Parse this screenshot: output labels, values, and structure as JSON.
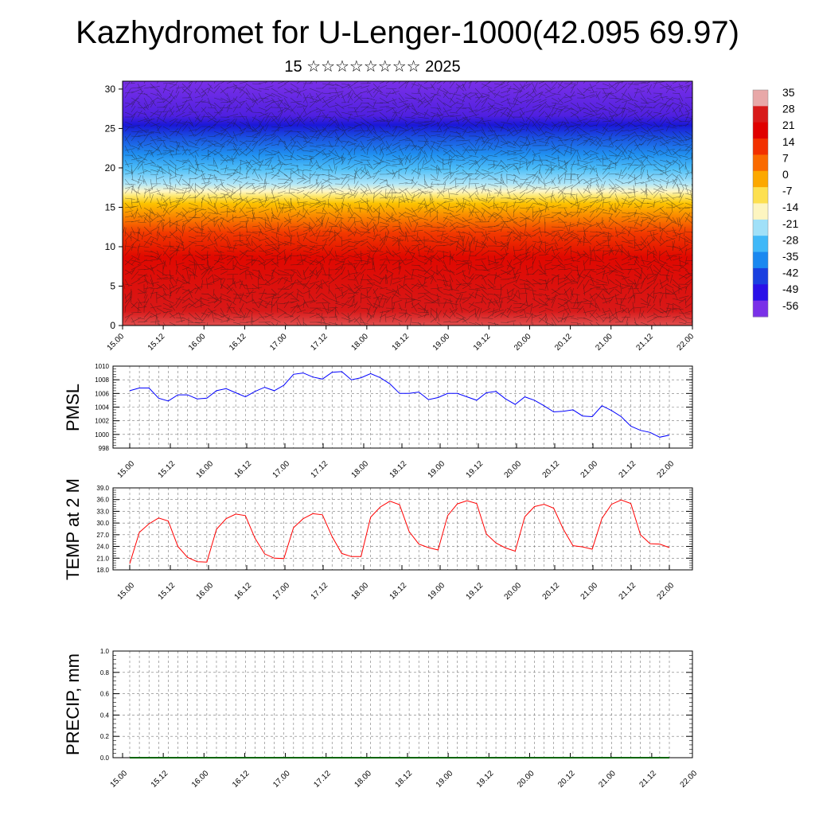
{
  "title": "Kazhydromet for U-Lenger-1000(42.095 69.97)",
  "subtitle": "15 ☆☆☆☆☆☆☆☆ 2025",
  "chart_data": [
    {
      "type": "heatmap",
      "title": "",
      "xlabel": "",
      "ylabel": "",
      "x_tick_labels": [
        "15.00",
        "15.12",
        "16.00",
        "16.12",
        "17.00",
        "17.12",
        "18.00",
        "18.12",
        "19.00",
        "19.12",
        "20.00",
        "20.12",
        "21.00",
        "21.12",
        "22.00"
      ],
      "y_ticks": [
        0,
        5,
        10,
        15,
        20,
        25,
        30
      ],
      "ylim": [
        0,
        31
      ],
      "colorbar_labels": [
        "35",
        "28",
        "21",
        "14",
        "7",
        "0",
        "-7",
        "-14",
        "-21",
        "-28",
        "-35",
        "-42",
        "-49",
        "-56"
      ],
      "colorbar_colors": [
        "#e8a8a8",
        "#d81a1a",
        "#e00000",
        "#f23000",
        "#fa6a00",
        "#fca800",
        "#fde050",
        "#fdf5c0",
        "#a0e0f8",
        "#40b8f8",
        "#1a88f0",
        "#1a40e0",
        "#2a10e8",
        "#7a30e8"
      ],
      "field_note": "temperature / wind barbs by height level over time"
    },
    {
      "type": "line",
      "title": "",
      "ylabel": "PMSL",
      "ylim": [
        998,
        1010
      ],
      "y_ticks": [
        998,
        1000,
        1002,
        1004,
        1006,
        1008,
        1010
      ],
      "x_tick_labels": [
        "15.00",
        "15.12",
        "16.00",
        "16.12",
        "17.00",
        "17.12",
        "18.00",
        "18.12",
        "19.00",
        "19.12",
        "20.00",
        "20.12",
        "21.00",
        "21.12",
        "22.00"
      ],
      "color": "#0000ff",
      "values": [
        1006.4,
        1006.8,
        1006.8,
        1005.3,
        1004.9,
        1005.8,
        1005.8,
        1005.2,
        1005.3,
        1006.4,
        1006.7,
        1006.1,
        1005.5,
        1006.3,
        1006.9,
        1006.4,
        1007.2,
        1008.8,
        1009.0,
        1008.4,
        1008.1,
        1009.1,
        1009.2,
        1008.0,
        1008.3,
        1008.9,
        1008.3,
        1007.4,
        1006.0,
        1006.0,
        1006.2,
        1005.1,
        1005.4,
        1006.0,
        1006.0,
        1005.5,
        1005.0,
        1006.1,
        1006.3,
        1005.2,
        1004.4,
        1005.5,
        1005.0,
        1004.2,
        1003.3,
        1003.4,
        1003.6,
        1002.7,
        1002.6,
        1004.2,
        1003.5,
        1002.6,
        1001.2,
        1000.6,
        1000.3,
        999.6,
        999.9
      ]
    },
    {
      "type": "line",
      "title": "",
      "ylabel": "TEMP at 2 M",
      "ylim": [
        18.0,
        39.0
      ],
      "y_ticks": [
        "18.0",
        "21.0",
        "24.0",
        "27.0",
        "30.0",
        "33.0",
        "36.0",
        "39.0"
      ],
      "x_tick_labels": [
        "15.00",
        "15.12",
        "16.00",
        "16.12",
        "17.00",
        "17.12",
        "18.00",
        "18.12",
        "19.00",
        "19.12",
        "20.00",
        "20.12",
        "21.00",
        "21.12",
        "22.00"
      ],
      "color": "#ff0000",
      "values": [
        19.6,
        27.6,
        29.8,
        31.3,
        30.5,
        24.0,
        21.2,
        20.1,
        20.0,
        28.4,
        31.1,
        32.3,
        31.9,
        26.1,
        22.1,
        21.0,
        20.9,
        28.8,
        31.1,
        32.4,
        32.1,
        26.5,
        22.2,
        21.4,
        21.4,
        31.5,
        34.1,
        35.6,
        34.7,
        27.8,
        24.6,
        23.7,
        23.1,
        31.9,
        34.9,
        35.7,
        35.0,
        27.2,
        24.9,
        23.6,
        22.8,
        31.6,
        34.2,
        34.8,
        33.8,
        28.4,
        24.2,
        23.9,
        23.3,
        31.2,
        34.8,
        35.9,
        35.0,
        27.0,
        24.7,
        24.6,
        23.7
      ]
    },
    {
      "type": "line",
      "title": "",
      "ylabel": "PRECIP, mm",
      "ylim": [
        0.0,
        1.0
      ],
      "y_ticks": [
        "0.0",
        "0.2",
        "0.4",
        "0.6",
        "0.8",
        "1.0"
      ],
      "x_tick_labels": [
        "15.00",
        "15.12",
        "16.00",
        "16.12",
        "17.00",
        "17.12",
        "18.00",
        "18.12",
        "19.00",
        "19.12",
        "20.00",
        "20.12",
        "21.00",
        "21.12",
        "22.00"
      ],
      "color": "#006400",
      "values": [
        0,
        0,
        0,
        0,
        0,
        0,
        0,
        0,
        0,
        0,
        0,
        0,
        0,
        0,
        0,
        0,
        0,
        0,
        0,
        0,
        0,
        0,
        0,
        0,
        0,
        0,
        0,
        0,
        0,
        0,
        0,
        0,
        0,
        0,
        0,
        0,
        0,
        0,
        0,
        0,
        0,
        0,
        0,
        0,
        0,
        0,
        0,
        0,
        0,
        0,
        0,
        0,
        0,
        0,
        0,
        0,
        0
      ]
    }
  ]
}
